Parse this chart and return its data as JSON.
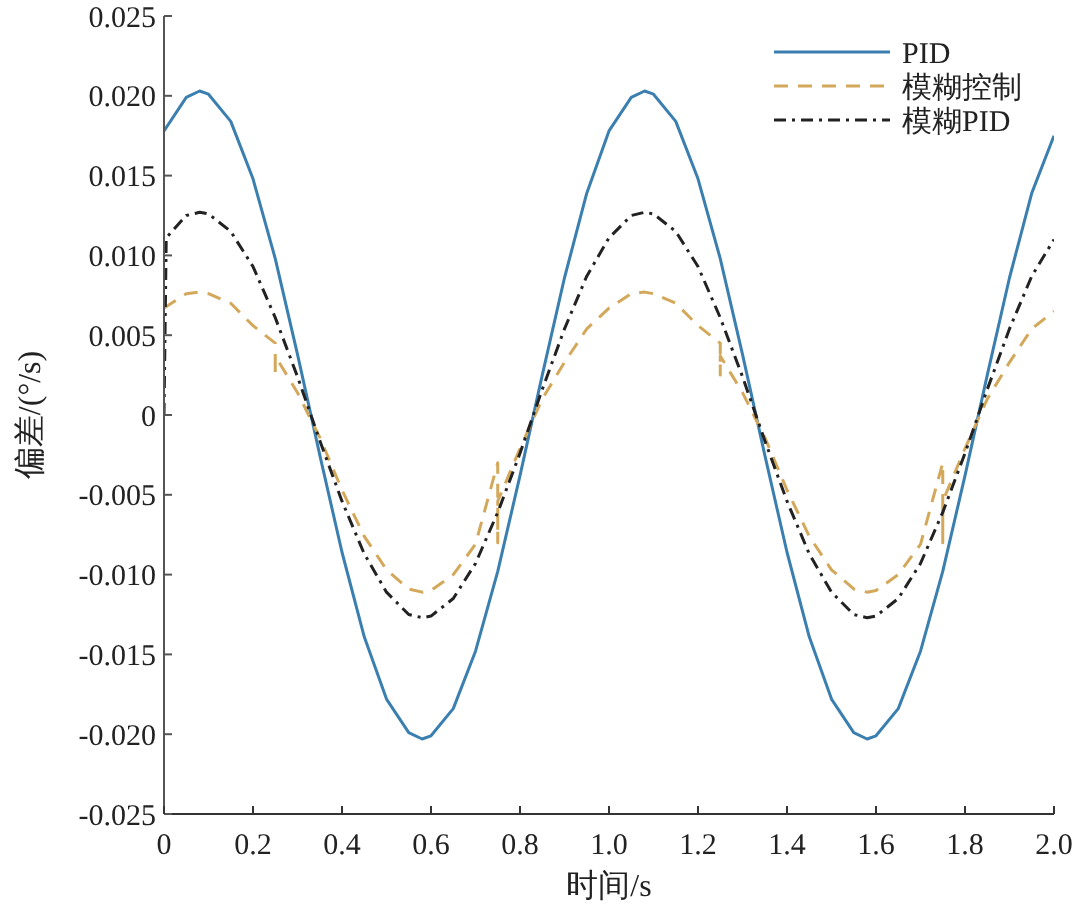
{
  "chart_data": {
    "type": "line",
    "xlabel": "时间/s",
    "ylabel": "偏差/(°/s)",
    "xlim": [
      0,
      2
    ],
    "ylim": [
      -0.025,
      0.025
    ],
    "xticks": [
      0,
      0.2,
      0.4,
      0.6,
      0.8,
      {
        "value": 1,
        "label": "1.0"
      },
      1.2,
      1.4,
      1.6,
      1.8,
      {
        "value": 2,
        "label": "2.0"
      }
    ],
    "yticks": [
      -0.025,
      {
        "value": -0.02,
        "label": "-0.020"
      },
      -0.015,
      {
        "value": -0.01,
        "label": "-0.010"
      },
      -0.005,
      0,
      0.005,
      {
        "value": 0.01,
        "label": "0.010"
      },
      0.015,
      {
        "value": 0.02,
        "label": "0.020"
      },
      0.025
    ],
    "grid": false,
    "legend": "top right",
    "marker": "none",
    "series": [
      {
        "name": "PID",
        "color": "#3a7fb0",
        "line_style": "solid",
        "x": [
          0,
          0.05,
          0.08,
          0.1,
          0.15,
          0.2,
          0.25,
          0.3,
          0.35,
          0.4,
          0.45,
          0.5,
          0.55,
          0.58,
          0.6,
          0.65,
          0.7,
          0.75,
          0.8,
          0.85,
          0.9,
          0.95,
          1,
          1.05,
          1.08,
          1.1,
          1.15,
          1.2,
          1.25,
          1.3,
          1.35,
          1.4,
          1.45,
          1.5,
          1.55,
          1.58,
          1.6,
          1.65,
          1.7,
          1.75,
          1.8,
          1.85,
          1.9,
          1.95,
          2
        ],
        "values": [
          0.0178,
          0.0199,
          0.0203,
          0.0201,
          0.0184,
          0.0148,
          0.0098,
          0.0038,
          -0.0025,
          -0.0086,
          -0.0139,
          -0.0178,
          -0.0199,
          -0.0203,
          -0.0201,
          -0.0184,
          -0.0148,
          -0.0098,
          -0.0038,
          0.0025,
          0.0086,
          0.0139,
          0.0178,
          0.0199,
          0.0203,
          0.0201,
          0.0184,
          0.0148,
          0.0098,
          0.0038,
          -0.0025,
          -0.0086,
          -0.0139,
          -0.0178,
          -0.0199,
          -0.0203,
          -0.0201,
          -0.0184,
          -0.0148,
          -0.0098,
          -0.0038,
          0.0025,
          0.0086,
          0.0139,
          0.0175
        ]
      },
      {
        "name": "模糊控制",
        "color": "#d4a85a",
        "line_style": "dashed",
        "x": [
          0,
          0.05,
          0.08,
          0.1,
          0.15,
          0.2,
          0.25,
          0.25,
          0.25,
          0.3,
          0.35,
          0.4,
          0.45,
          0.5,
          0.55,
          0.58,
          0.6,
          0.65,
          0.7,
          0.75,
          0.75,
          0.75,
          0.8,
          0.85,
          0.9,
          0.95,
          1,
          1.05,
          1.08,
          1.1,
          1.15,
          1.2,
          1.25,
          1.25,
          1.25,
          1.3,
          1.35,
          1.4,
          1.45,
          1.5,
          1.55,
          1.58,
          1.6,
          1.65,
          1.7,
          1.75,
          1.75,
          1.75,
          1.8,
          1.85,
          1.9,
          1.95,
          2
        ],
        "values": [
          0.0067,
          0.0076,
          0.0077,
          0.0076,
          0.007,
          0.0056,
          0.0045,
          0.0025,
          0.0037,
          0.0014,
          -0.0014,
          -0.0047,
          -0.0076,
          -0.0097,
          -0.0109,
          -0.0111,
          -0.011,
          -0.01,
          -0.0081,
          -0.003,
          -0.008,
          -0.0054,
          -0.0021,
          0.001,
          0.0033,
          0.0054,
          0.0067,
          0.0076,
          0.0077,
          0.0076,
          0.007,
          0.0056,
          0.0045,
          0.0025,
          0.0037,
          0.0014,
          -0.0014,
          -0.0047,
          -0.0076,
          -0.0097,
          -0.0109,
          -0.0111,
          -0.011,
          -0.01,
          -0.0081,
          -0.003,
          -0.008,
          -0.0054,
          -0.0021,
          0.001,
          0.0033,
          0.0054,
          0.0065
        ]
      },
      {
        "name": "模糊PID",
        "color": "#222222",
        "line_style": "dashdot",
        "x": [
          0,
          0.005,
          0.05,
          0.08,
          0.1,
          0.15,
          0.2,
          0.25,
          0.3,
          0.35,
          0.4,
          0.45,
          0.5,
          0.55,
          0.58,
          0.6,
          0.65,
          0.7,
          0.75,
          0.8,
          0.85,
          0.9,
          0.95,
          1,
          1.05,
          1.08,
          1.1,
          1.15,
          1.2,
          1.25,
          1.3,
          1.35,
          1.4,
          1.45,
          1.5,
          1.55,
          1.58,
          1.6,
          1.65,
          1.7,
          1.75,
          1.8,
          1.85,
          1.9,
          1.95,
          2
        ],
        "values": [
          0,
          0.0111,
          0.0125,
          0.0127,
          0.0126,
          0.0115,
          0.0093,
          0.0061,
          0.0024,
          -0.0016,
          -0.0054,
          -0.0087,
          -0.0111,
          -0.0125,
          -0.0127,
          -0.0126,
          -0.0115,
          -0.0093,
          -0.0061,
          -0.0024,
          0.0016,
          0.0054,
          0.0087,
          0.0111,
          0.0125,
          0.0127,
          0.0126,
          0.0115,
          0.0093,
          0.0061,
          0.0024,
          -0.0016,
          -0.0054,
          -0.0087,
          -0.0111,
          -0.0125,
          -0.0127,
          -0.0126,
          -0.0115,
          -0.0093,
          -0.0061,
          -0.0024,
          0.0016,
          0.0054,
          0.0087,
          0.011
        ]
      }
    ]
  }
}
